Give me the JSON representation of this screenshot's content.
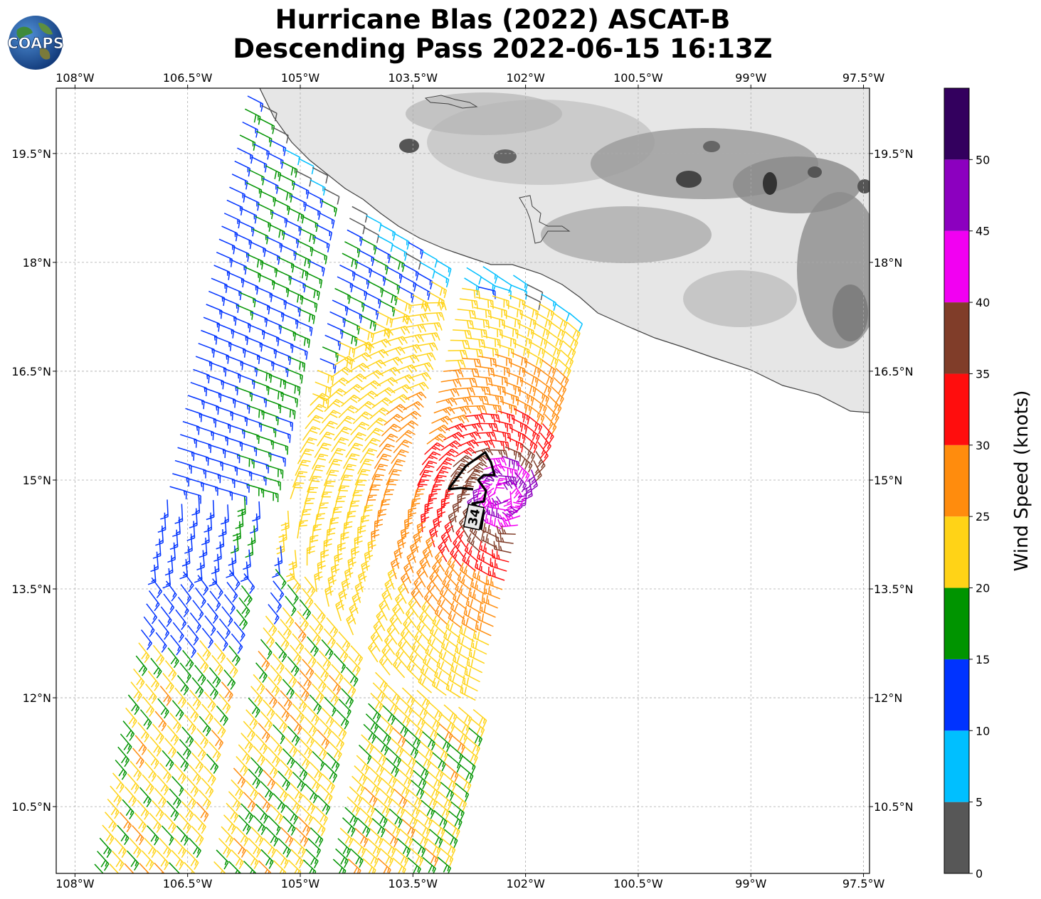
{
  "title_line1": "Hurricane Blas (2022) ASCAT-B",
  "title_line2": "Descending Pass 2022-06-15 16:13Z",
  "logo_text": "COAPS",
  "lon_ticks": [
    {
      "value": -108,
      "label": "108°W"
    },
    {
      "value": -106.5,
      "label": "106.5°W"
    },
    {
      "value": -105,
      "label": "105°W"
    },
    {
      "value": -103.5,
      "label": "103.5°W"
    },
    {
      "value": -102,
      "label": "102°W"
    },
    {
      "value": -100.5,
      "label": "100.5°W"
    },
    {
      "value": -99,
      "label": "99°W"
    },
    {
      "value": -97.5,
      "label": "97.5°W"
    }
  ],
  "lat_ticks": [
    {
      "value": 19.5,
      "label": "19.5°N"
    },
    {
      "value": 18,
      "label": "18°N"
    },
    {
      "value": 16.5,
      "label": "16.5°N"
    },
    {
      "value": 15,
      "label": "15°N"
    },
    {
      "value": 13.5,
      "label": "13.5°N"
    },
    {
      "value": 12,
      "label": "12°N"
    },
    {
      "value": 10.5,
      "label": "10.5°N"
    }
  ],
  "map_extent": {
    "lon_min": -108.25,
    "lon_max": -97.42,
    "lat_min": 9.58,
    "lat_max": 20.4
  },
  "wind_radius_label": "34",
  "colorbar": {
    "label": "Wind Speed (knots)",
    "bins": [
      {
        "from": 0,
        "to": 5,
        "color": "#575757"
      },
      {
        "from": 5,
        "to": 10,
        "color": "#00bfff"
      },
      {
        "from": 10,
        "to": 15,
        "color": "#0033ff"
      },
      {
        "from": 15,
        "to": 20,
        "color": "#009400"
      },
      {
        "from": 20,
        "to": 25,
        "color": "#ffd317"
      },
      {
        "from": 25,
        "to": 30,
        "color": "#ff8c0d"
      },
      {
        "from": 30,
        "to": 35,
        "color": "#ff0d0d"
      },
      {
        "from": 35,
        "to": 40,
        "color": "#803d29"
      },
      {
        "from": 40,
        "to": 45,
        "color": "#f200f2"
      },
      {
        "from": 45,
        "to": 50,
        "color": "#8c00bf"
      },
      {
        "from": 50,
        "to": 55,
        "color": "#33005e"
      }
    ],
    "ticks": [
      "0",
      "5",
      "10",
      "15",
      "20",
      "25",
      "30",
      "35",
      "40",
      "45",
      "50"
    ]
  },
  "storm_center": {
    "lon": -102.3,
    "lat": 14.8
  }
}
